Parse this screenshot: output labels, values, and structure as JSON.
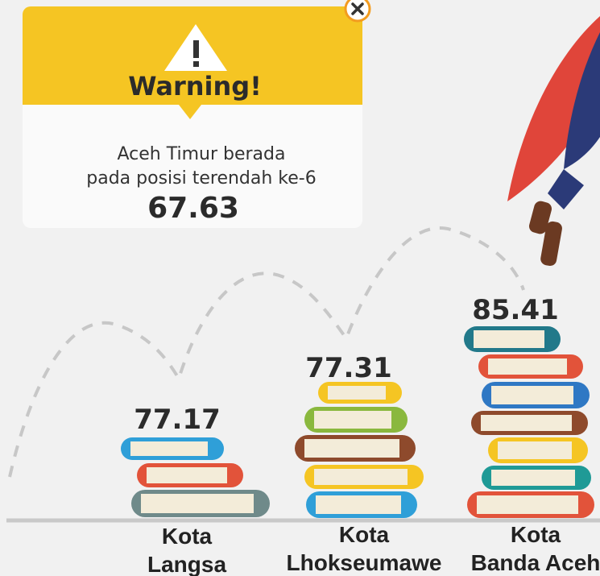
{
  "warning": {
    "title": "Warning!",
    "message": [
      "Aceh Timur berada",
      "pada posisi terendah ke-6"
    ],
    "value": 67.63
  },
  "items": [
    {
      "value": 77.17,
      "label": [
        "Kota",
        "Langsa"
      ]
    },
    {
      "value": 77.31,
      "label": [
        "Kota",
        "Lhokseumawe"
      ]
    },
    {
      "value": 85.41,
      "label": [
        "Kota",
        "Banda Aceh"
      ]
    }
  ]
}
